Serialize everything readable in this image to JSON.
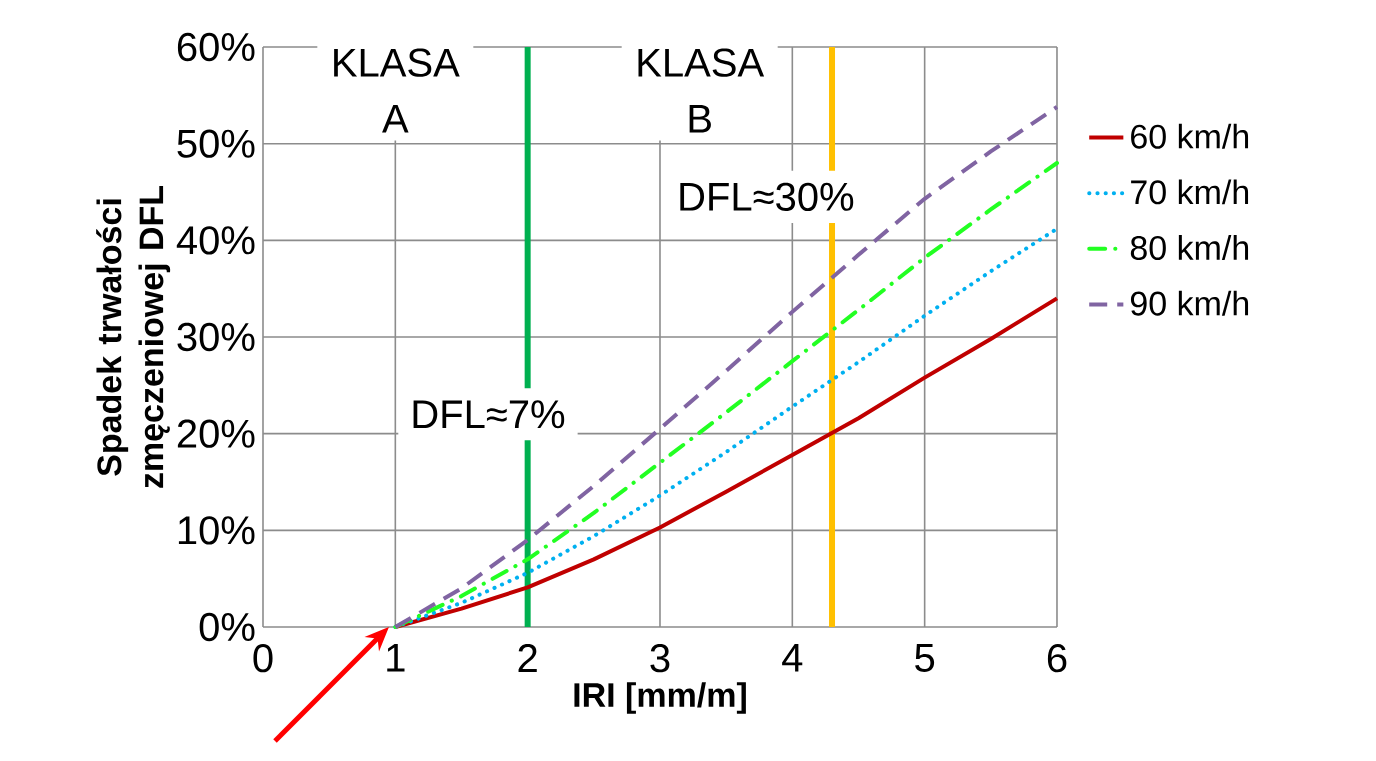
{
  "chart_data": {
    "type": "line",
    "xlabel": "IRI [mm/m]",
    "ylabel": "Spadek trwałości zmęczeniowej DFL",
    "x": [
      1,
      1.5,
      2,
      2.5,
      3,
      3.5,
      4,
      4.5,
      5,
      5.5,
      6
    ],
    "series": [
      {
        "name": "60 km/h",
        "color": "#c00000",
        "line_style": "solid",
        "values": [
          0,
          1.9,
          4.1,
          7.0,
          10.3,
          14.0,
          17.8,
          21.6,
          25.8,
          29.8,
          34
        ]
      },
      {
        "name": "70 km/h",
        "color": "#00b0f0",
        "line_style": "dotted",
        "values": [
          0,
          2.5,
          5.6,
          9.4,
          13.6,
          18.1,
          22.8,
          27.4,
          32.2,
          36.8,
          41.2
        ]
      },
      {
        "name": "80 km/h",
        "color": "#22ff22",
        "line_style": "dashdot",
        "values": [
          0,
          3.2,
          7.0,
          11.8,
          17.0,
          22.2,
          27.5,
          32.8,
          38.2,
          43.2,
          48.0
        ]
      },
      {
        "name": "90 km/h",
        "color": "#8064a2",
        "line_style": "dashed",
        "values": [
          0,
          4.0,
          9.0,
          14.6,
          20.5,
          26.5,
          32.6,
          38.5,
          44.3,
          49.2,
          53.8
        ]
      }
    ],
    "xlim": [
      0,
      6
    ],
    "xticks": [
      0,
      1,
      2,
      3,
      4,
      5,
      6
    ],
    "ylim": [
      0,
      60
    ],
    "yticks": [
      {
        "value": 0,
        "label": "0%"
      },
      {
        "value": 10,
        "label": "10%"
      },
      {
        "value": 20,
        "label": "20%"
      },
      {
        "value": 30,
        "label": "30%"
      },
      {
        "value": 40,
        "label": "40%"
      },
      {
        "value": 50,
        "label": "50%"
      },
      {
        "value": 60,
        "label": "60%"
      }
    ],
    "ref_lines": [
      {
        "axis": "x",
        "value": 2,
        "label": "DFL≈7%",
        "color": "#00b050"
      },
      {
        "axis": "x",
        "value": 4.3,
        "label": "DFL≈30%",
        "color": "#ffc000"
      }
    ],
    "annotations": [
      "KLASA A",
      "KLASA B"
    ],
    "grid": true,
    "legend": "right",
    "marker": "none"
  }
}
